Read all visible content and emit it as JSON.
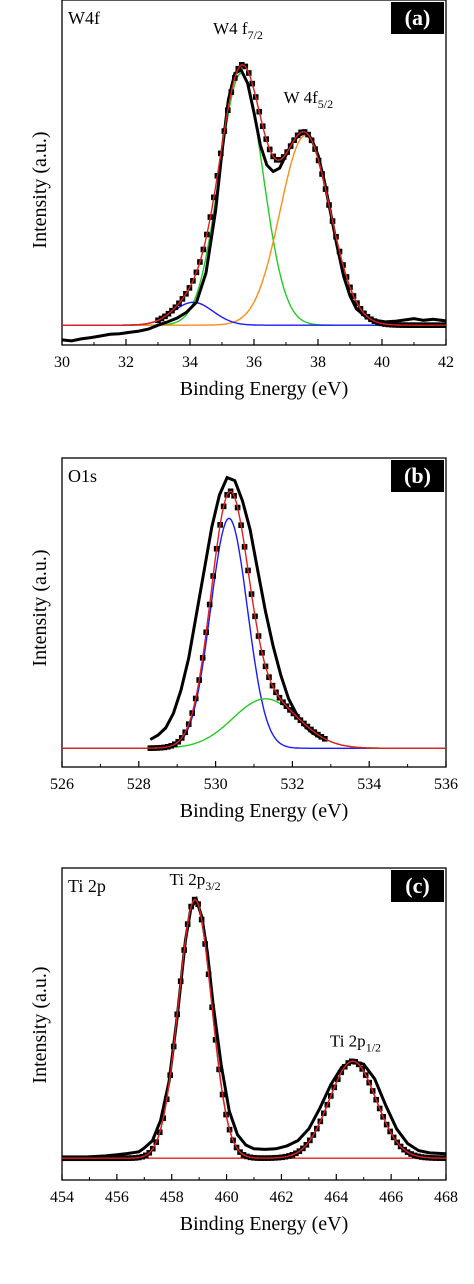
{
  "chart_data": [
    {
      "type": "line",
      "panel_label": "(a)",
      "element_label": "W4f",
      "xlabel": "Binding Energy (eV)",
      "ylabel": "Intensity (a.u.)",
      "xlim": [
        30,
        42
      ],
      "ylim": [
        0,
        1
      ],
      "xticks": [
        30,
        32,
        34,
        36,
        38,
        40,
        42
      ],
      "xtick_labels": [
        "30",
        "32",
        "34",
        "36",
        "38",
        "40",
        "42"
      ],
      "grid": false,
      "peak_labels": [
        {
          "main": "W4 f",
          "sub": "7/2",
          "x": 35.5,
          "y": 0.92
        },
        {
          "main": "W 4f",
          "sub": "5/2",
          "x": 37.7,
          "y": 0.71
        }
      ],
      "components": [
        {
          "type": "gaussian",
          "center": 35.6,
          "height": 0.77,
          "sigma": 0.68,
          "color": "#22cc22"
        },
        {
          "type": "gaussian",
          "center": 37.6,
          "height": 0.58,
          "sigma": 0.78,
          "color": "#ff8c1a"
        },
        {
          "type": "gaussian",
          "center": 34.1,
          "height": 0.07,
          "sigma": 0.62,
          "color": "#1a1aff"
        }
      ],
      "baseline": 0.03,
      "fit_color": "#e0201f",
      "data_color": "#000000",
      "data_region": [
        33.0,
        42.0
      ],
      "data_points": [
        [
          30.0,
          -0.015
        ],
        [
          30.3,
          -0.018
        ],
        [
          30.6,
          -0.012
        ],
        [
          30.9,
          -0.008
        ],
        [
          31.2,
          -0.003
        ],
        [
          31.5,
          0.002
        ],
        [
          31.8,
          0.004
        ],
        [
          32.1,
          0.008
        ],
        [
          32.4,
          0.012
        ],
        [
          32.7,
          0.018
        ],
        [
          33.0,
          0.03
        ],
        [
          33.3,
          0.04
        ],
        [
          33.6,
          0.052
        ],
        [
          33.9,
          0.07
        ],
        [
          34.2,
          0.1
        ],
        [
          34.5,
          0.19
        ],
        [
          34.8,
          0.38
        ],
        [
          35.0,
          0.56
        ],
        [
          35.2,
          0.72
        ],
        [
          35.4,
          0.8
        ],
        [
          35.6,
          0.81
        ],
        [
          35.8,
          0.77
        ],
        [
          36.0,
          0.68
        ],
        [
          36.2,
          0.58
        ],
        [
          36.4,
          0.52
        ],
        [
          36.6,
          0.5
        ],
        [
          36.8,
          0.51
        ],
        [
          37.0,
          0.55
        ],
        [
          37.2,
          0.59
        ],
        [
          37.4,
          0.61
        ],
        [
          37.6,
          0.62
        ],
        [
          37.8,
          0.6
        ],
        [
          38.0,
          0.55
        ],
        [
          38.2,
          0.47
        ],
        [
          38.4,
          0.37
        ],
        [
          38.6,
          0.27
        ],
        [
          38.8,
          0.18
        ],
        [
          39.0,
          0.12
        ],
        [
          39.2,
          0.08
        ],
        [
          39.5,
          0.055
        ],
        [
          39.8,
          0.045
        ],
        [
          40.1,
          0.04
        ],
        [
          40.4,
          0.042
        ],
        [
          40.7,
          0.046
        ],
        [
          41.0,
          0.05
        ],
        [
          41.3,
          0.045
        ],
        [
          41.6,
          0.048
        ],
        [
          42.0,
          0.043
        ]
      ]
    },
    {
      "type": "line",
      "panel_label": "(b)",
      "element_label": "O1s",
      "xlabel": "Binding Energy (eV)",
      "ylabel": "Intensity (a.u.)",
      "xlim": [
        526,
        536
      ],
      "ylim": [
        0,
        1
      ],
      "xticks": [
        526,
        528,
        530,
        532,
        534,
        536
      ],
      "xtick_labels": [
        "526",
        "528",
        "530",
        "532",
        "534",
        "536"
      ],
      "grid": false,
      "peak_labels": [],
      "components": [
        {
          "type": "gaussian",
          "center": 530.35,
          "height": 0.79,
          "sigma": 0.48,
          "color": "#1a1aff"
        },
        {
          "type": "gaussian",
          "center": 531.3,
          "height": 0.17,
          "sigma": 0.85,
          "color": "#22cc22"
        }
      ],
      "baseline": 0.03,
      "fit_color": "#e0201f",
      "data_color": "#000000",
      "data_region": [
        528.3,
        532.9
      ],
      "data_points": [
        [
          528.3,
          0.06
        ],
        [
          528.5,
          0.075
        ],
        [
          528.7,
          0.1
        ],
        [
          528.9,
          0.15
        ],
        [
          529.1,
          0.23
        ],
        [
          529.3,
          0.34
        ],
        [
          529.5,
          0.49
        ],
        [
          529.7,
          0.64
        ],
        [
          529.9,
          0.79
        ],
        [
          530.1,
          0.9
        ],
        [
          530.3,
          0.96
        ],
        [
          530.5,
          0.95
        ],
        [
          530.7,
          0.88
        ],
        [
          530.9,
          0.78
        ],
        [
          531.1,
          0.64
        ],
        [
          531.3,
          0.5
        ],
        [
          531.5,
          0.38
        ],
        [
          531.7,
          0.28
        ],
        [
          531.9,
          0.2
        ],
        [
          532.1,
          0.15
        ],
        [
          532.3,
          0.11
        ],
        [
          532.5,
          0.085
        ],
        [
          532.7,
          0.068
        ],
        [
          532.9,
          0.058
        ]
      ]
    },
    {
      "type": "line",
      "panel_label": "(c)",
      "element_label": "Ti 2p",
      "xlabel": "Binding Energy (eV)",
      "ylabel": "Intensity (a.u.)",
      "xlim": [
        454,
        468
      ],
      "ylim": [
        0,
        1
      ],
      "xticks": [
        454,
        456,
        458,
        460,
        462,
        464,
        466,
        468
      ],
      "xtick_labels": [
        "454",
        "456",
        "458",
        "460",
        "462",
        "464",
        "466",
        "468"
      ],
      "grid": false,
      "peak_labels": [
        {
          "main": "Ti 2p",
          "sub": "3/2",
          "x": 458.85,
          "y": 0.97
        },
        {
          "main": "Ti 2p",
          "sub": "1/2",
          "x": 464.7,
          "y": 0.42
        }
      ],
      "components": [
        {
          "type": "gaussian",
          "center": 458.85,
          "height": 0.88,
          "sigma": 0.6,
          "color": "#e0201f"
        },
        {
          "type": "gaussian",
          "center": 464.6,
          "height": 0.33,
          "sigma": 0.85,
          "color": "#e0201f"
        }
      ],
      "baseline": 0.04,
      "fit_color": "#e0201f",
      "data_color": "#000000",
      "data_region": [
        454.0,
        468.0
      ],
      "data_points": [
        [
          454.0,
          0.04
        ],
        [
          454.4,
          0.042
        ],
        [
          454.8,
          0.044
        ],
        [
          455.2,
          0.046
        ],
        [
          455.6,
          0.048
        ],
        [
          456.0,
          0.052
        ],
        [
          456.4,
          0.056
        ],
        [
          456.8,
          0.062
        ],
        [
          457.0,
          0.075
        ],
        [
          457.3,
          0.1
        ],
        [
          457.6,
          0.17
        ],
        [
          457.9,
          0.3
        ],
        [
          458.2,
          0.52
        ],
        [
          458.5,
          0.78
        ],
        [
          458.7,
          0.89
        ],
        [
          458.9,
          0.92
        ],
        [
          459.1,
          0.86
        ],
        [
          459.3,
          0.74
        ],
        [
          459.5,
          0.57
        ],
        [
          459.8,
          0.36
        ],
        [
          460.1,
          0.2
        ],
        [
          460.4,
          0.12
        ],
        [
          460.7,
          0.085
        ],
        [
          461.0,
          0.072
        ],
        [
          461.4,
          0.07
        ],
        [
          461.8,
          0.072
        ],
        [
          462.2,
          0.082
        ],
        [
          462.6,
          0.1
        ],
        [
          463.0,
          0.14
        ],
        [
          463.4,
          0.21
        ],
        [
          463.8,
          0.29
        ],
        [
          464.2,
          0.35
        ],
        [
          464.6,
          0.37
        ],
        [
          465.0,
          0.36
        ],
        [
          465.4,
          0.31
        ],
        [
          465.8,
          0.22
        ],
        [
          466.2,
          0.14
        ],
        [
          466.6,
          0.09
        ],
        [
          467.0,
          0.066
        ],
        [
          467.4,
          0.058
        ],
        [
          468.0,
          0.055
        ]
      ]
    }
  ]
}
